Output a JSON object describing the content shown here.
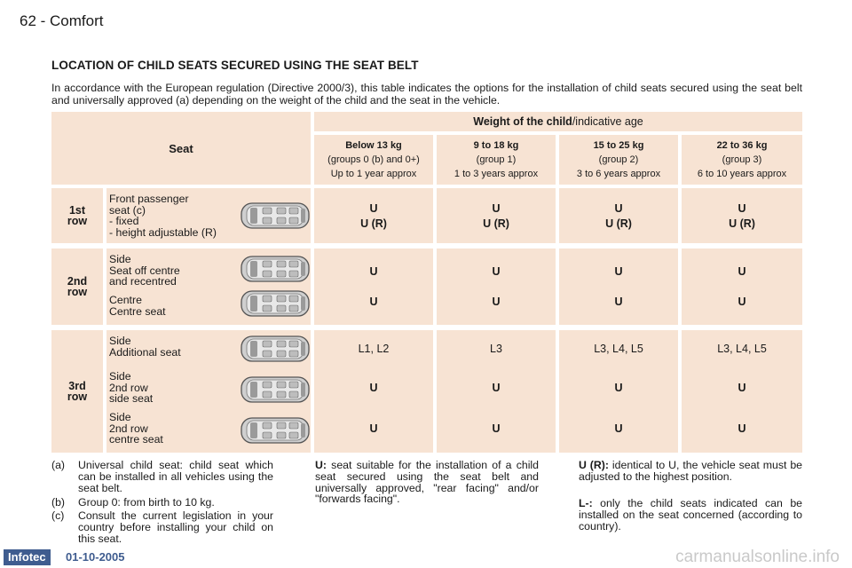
{
  "header": {
    "page": "62 - Comfort"
  },
  "title": "LOCATION OF CHILD SEATS SECURED USING THE SEAT BELT",
  "intro": "In accordance with the European regulation (Directive 2000/3), this table indicates the options for the installation of child seats secured using the seat belt and universally approved (a) depending on the weight of the child and the seat in the vehicle.",
  "table": {
    "seat_header": "Seat",
    "weight_header_bold": "Weight of the child",
    "weight_header_rest": "/indicative age",
    "columns": [
      {
        "weight": "Below 13 kg",
        "group": "(groups 0 (b) and 0+)",
        "age": "Up to 1 year approx"
      },
      {
        "weight": "9 to 18 kg",
        "group": "(group 1)",
        "age": "1 to 3 years approx"
      },
      {
        "weight": "15 to 25 kg",
        "group": "(group 2)",
        "age": "3 to 6 years approx"
      },
      {
        "weight": "22 to 36 kg",
        "group": "(group 3)",
        "age": "6 to 10 years approx"
      }
    ],
    "row1": {
      "label": [
        "1st",
        "row"
      ],
      "desc": [
        "Front passenger",
        "seat (c)",
        "- fixed",
        "- height adjustable (R)"
      ],
      "values": [
        [
          "U",
          "U (R)"
        ],
        [
          "U",
          "U (R)"
        ],
        [
          "U",
          "U (R)"
        ],
        [
          "U",
          "U (R)"
        ]
      ]
    },
    "row2": {
      "label": [
        "2nd",
        "row"
      ],
      "desc_a": [
        "Side",
        "Seat off centre",
        "and recentred"
      ],
      "desc_b": [
        "Centre",
        "Centre seat"
      ],
      "values_a": [
        "U",
        "U",
        "U",
        "U"
      ],
      "values_b": [
        "U",
        "U",
        "U",
        "U"
      ]
    },
    "row3": {
      "label": [
        "3rd",
        "row"
      ],
      "desc_a": [
        "Side",
        "Additional seat"
      ],
      "desc_b": [
        "Side",
        "2nd row",
        "side seat"
      ],
      "desc_c": [
        "Side",
        "2nd row",
        "centre seat"
      ],
      "values_a": [
        "L1, L2",
        "L3",
        "L3, L4, L5",
        "L3, L4, L5"
      ],
      "values_b": [
        "U",
        "U",
        "U",
        "U"
      ],
      "values_c": [
        "U",
        "U",
        "U",
        "U"
      ]
    }
  },
  "notes": {
    "a_key": "(a)",
    "a_text": "Universal child seat: child seat which can be installed in all vehicles using the seat belt.",
    "b_key": "(b)",
    "b_text": "Group 0: from birth to 10 kg.",
    "c_key": "(c)",
    "c_text": "Consult the current legislation in your country before installing your child on this seat.",
    "u_key": "U:",
    "u_text": "seat suitable for the installation of a child seat secured using the seat belt and universally approved, \"rear facing\" and/or \"forwards facing\".",
    "ur_key": "U (R):",
    "ur_text": "identical to U, the vehicle seat must be adjusted to the highest position.",
    "l_key": "L-:",
    "l_text": "only the child seats indicated can be installed on the seat concerned (according to country)."
  },
  "footer": {
    "logo": "Infotec",
    "date": "01-10-2005",
    "watermark": "carmanualsonline.info"
  },
  "colors": {
    "cell_bg": "#f7e3d3",
    "brand": "#3f5c8f"
  },
  "icons": [
    "car-top-view-icon"
  ]
}
